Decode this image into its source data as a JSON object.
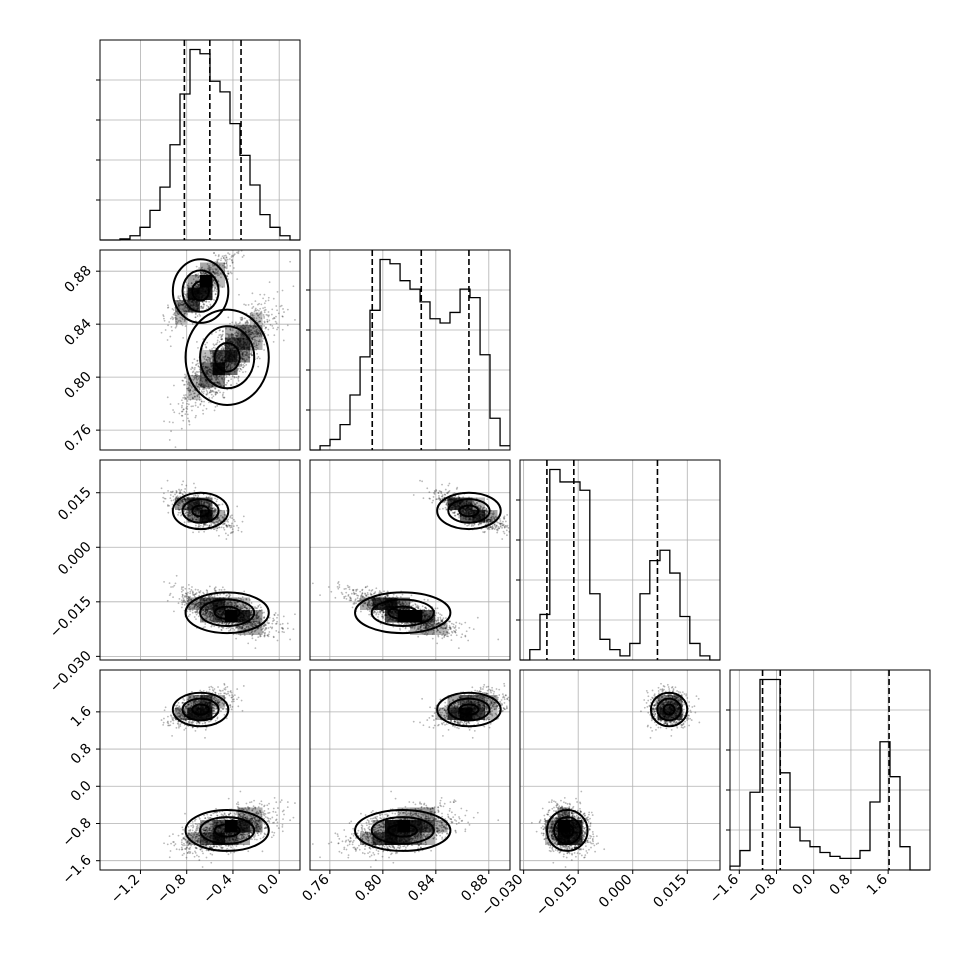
{
  "chart_data": {
    "type": "corner",
    "params": [
      {
        "range": [
          -1.55,
          0.18
        ],
        "ticks": [
          {
            "v": -1.2,
            "label": "−1.2"
          },
          {
            "v": -0.8,
            "label": "−0.8"
          },
          {
            "v": -0.4,
            "label": "−0.4"
          },
          {
            "v": 0.0,
            "label": "0.0"
          }
        ],
        "quantiles": [
          -0.82,
          -0.6,
          -0.33
        ],
        "hist": {
          "edges": [
            -1.55,
            -1.4635,
            -1.377,
            -1.2905,
            -1.204,
            -1.1175,
            -1.031,
            -0.9445,
            -0.858,
            -0.7715,
            -0.685,
            -0.5985,
            -0.512,
            -0.4255,
            -0.339,
            -0.2525,
            -0.166,
            -0.0795,
            0.007,
            0.0935,
            0.18
          ],
          "counts": [
            0.0,
            0.0,
            0.005,
            0.02,
            0.06,
            0.14,
            0.25,
            0.45,
            0.69,
            0.9,
            0.88,
            0.75,
            0.7,
            0.55,
            0.4,
            0.26,
            0.12,
            0.06,
            0.02,
            0.0
          ]
        }
      },
      {
        "range": [
          0.745,
          0.896
        ],
        "ticks": [
          {
            "v": 0.76,
            "label": "0.76"
          },
          {
            "v": 0.8,
            "label": "0.80"
          },
          {
            "v": 0.84,
            "label": "0.84"
          },
          {
            "v": 0.88,
            "label": "0.88"
          }
        ],
        "quantiles": [
          0.792,
          0.829,
          0.865
        ],
        "hist": {
          "edges": [
            0.745,
            0.7526,
            0.7601,
            0.7677,
            0.7752,
            0.7828,
            0.7903,
            0.7979,
            0.8054,
            0.813,
            0.8205,
            0.8281,
            0.8356,
            0.8432,
            0.8507,
            0.8583,
            0.8658,
            0.8734,
            0.8809,
            0.8885,
            0.896
          ],
          "counts": [
            0.0,
            0.02,
            0.05,
            0.12,
            0.26,
            0.44,
            0.66,
            0.9,
            0.88,
            0.8,
            0.76,
            0.7,
            0.62,
            0.6,
            0.65,
            0.76,
            0.72,
            0.45,
            0.15,
            0.02
          ]
        }
      },
      {
        "range": [
          -0.031,
          0.024
        ],
        "ticks": [
          {
            "v": -0.03,
            "label": "−0.030"
          },
          {
            "v": -0.015,
            "label": "−0.015"
          },
          {
            "v": 0.0,
            "label": "0.000"
          },
          {
            "v": 0.015,
            "label": "0.015"
          }
        ],
        "quantiles": [
          -0.0236,
          -0.0162,
          0.0068
        ],
        "hist": {
          "edges": [
            -0.031,
            -0.0283,
            -0.0255,
            -0.0228,
            -0.02,
            -0.0173,
            -0.0145,
            -0.0118,
            -0.009,
            -0.0063,
            -0.0035,
            -0.0008,
            0.002,
            0.0047,
            0.0075,
            0.0102,
            0.013,
            0.0157,
            0.0185,
            0.0212,
            0.024
          ],
          "counts": [
            0.0,
            0.05,
            0.22,
            0.92,
            0.86,
            0.86,
            0.82,
            0.32,
            0.1,
            0.05,
            0.02,
            0.08,
            0.32,
            0.48,
            0.53,
            0.42,
            0.21,
            0.08,
            0.02,
            0.0
          ]
        }
      },
      {
        "range": [
          -1.8,
          2.5
        ],
        "ticks": [
          {
            "v": -1.6,
            "label": "−1.6"
          },
          {
            "v": -0.8,
            "label": "−0.8"
          },
          {
            "v": 0.0,
            "label": "0.0"
          },
          {
            "v": 0.8,
            "label": "0.8"
          },
          {
            "v": 1.6,
            "label": "1.6"
          }
        ],
        "quantiles": [
          -1.1,
          -0.72,
          1.62
        ],
        "hist": {
          "edges": [
            -1.8,
            -1.585,
            -1.37,
            -1.155,
            -0.94,
            -0.725,
            -0.51,
            -0.295,
            -0.08,
            0.135,
            0.35,
            0.565,
            0.78,
            0.995,
            1.21,
            1.425,
            1.64,
            1.855,
            2.07,
            2.285,
            2.5
          ],
          "counts": [
            0.02,
            0.1,
            0.4,
            0.98,
            0.98,
            0.5,
            0.22,
            0.15,
            0.12,
            0.09,
            0.07,
            0.06,
            0.06,
            0.1,
            0.35,
            0.66,
            0.48,
            0.12,
            0.0,
            0.0
          ]
        }
      }
    ]
  }
}
